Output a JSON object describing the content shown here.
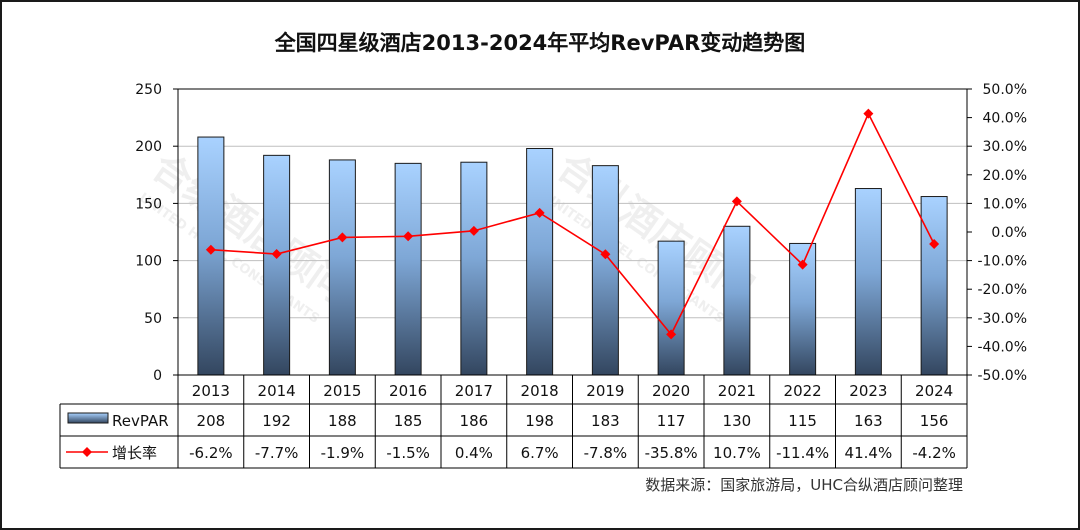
{
  "chart_data": {
    "type": "bar+line",
    "title": "全国四星级酒店2013-2024年平均RevPAR变动趋势图",
    "categories": [
      "2013",
      "2014",
      "2015",
      "2016",
      "2017",
      "2018",
      "2019",
      "2020",
      "2021",
      "2022",
      "2023",
      "2024"
    ],
    "series": [
      {
        "name": "RevPAR",
        "type": "bar",
        "axis": "left",
        "values": [
          208,
          192,
          188,
          185,
          186,
          198,
          183,
          117,
          130,
          115,
          163,
          156
        ]
      },
      {
        "name": "增长率",
        "type": "line",
        "axis": "right",
        "values": [
          -6.2,
          -7.7,
          -1.9,
          -1.5,
          0.4,
          6.7,
          -7.8,
          -35.8,
          10.7,
          -11.4,
          41.4,
          -4.2
        ]
      }
    ],
    "table_labels": {
      "revpar": [
        "208",
        "192",
        "188",
        "185",
        "186",
        "198",
        "183",
        "117",
        "130",
        "115",
        "163",
        "156"
      ],
      "growth": [
        "-6.2%",
        "-7.7%",
        "-1.9%",
        "-1.5%",
        "0.4%",
        "6.7%",
        "-7.8%",
        "-35.8%",
        "10.7%",
        "-11.4%",
        "41.4%",
        "-4.2%"
      ]
    },
    "left_axis": {
      "ylim": [
        0,
        250
      ],
      "ticks": [
        "0",
        "50",
        "100",
        "150",
        "200",
        "250"
      ]
    },
    "right_axis": {
      "ylim": [
        -50,
        50
      ],
      "ticks": [
        "50.0%",
        "40.0%",
        "30.0%",
        "20.0%",
        "10.0%",
        "0.0%",
        "-10.0%",
        "-20.0%",
        "-30.0%",
        "-40.0%",
        "-50.0%"
      ]
    },
    "grid": "horizontal",
    "legend": "data-table-left",
    "source": "数据来源：国家旅游局，UHC合纵酒店顾问整理",
    "watermark": [
      "合纵酒店顾问",
      "UNITED HOTEL CONSULTANTS"
    ],
    "colors": {
      "bar_top": "#a9d2ff",
      "bar_bottom": "#33465f",
      "line": "#ff0000",
      "marker": "#ff0000"
    }
  }
}
